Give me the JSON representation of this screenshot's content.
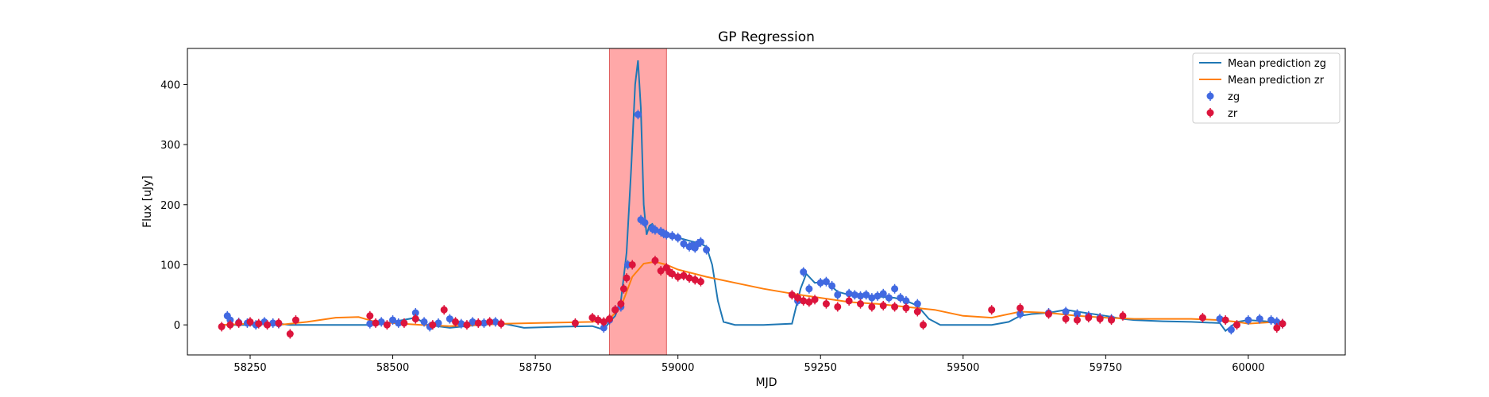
{
  "chart_data": {
    "type": "scatter",
    "title": "GP Regression",
    "xlabel": "MJD",
    "ylabel": "Flux [uJy]",
    "xlim": [
      58140,
      60170
    ],
    "ylim": [
      -50,
      460
    ],
    "x_ticks": [
      58250,
      58500,
      58750,
      59000,
      59250,
      59500,
      59750,
      60000
    ],
    "y_ticks": [
      0,
      100,
      200,
      300,
      400
    ],
    "legend_position": "top-right",
    "highlight_region": {
      "x_start": 58880,
      "x_end": 58980,
      "color": "#ff9e9e"
    },
    "legend": [
      {
        "label": "Mean prediction zg",
        "kind": "line",
        "color": "#1f77b4"
      },
      {
        "label": "Mean prediction zr",
        "kind": "line",
        "color": "#ff7f0e"
      },
      {
        "label": "zg",
        "kind": "errorbar",
        "color": "#4169e1"
      },
      {
        "label": "zr",
        "kind": "errorbar",
        "color": "#dc143c"
      }
    ],
    "series": [
      {
        "name": "Mean prediction zg",
        "kind": "line",
        "color": "#1f77b4",
        "x": [
          58200,
          58250,
          58300,
          58320,
          58400,
          58470,
          58500,
          58540,
          58560,
          58600,
          58650,
          58690,
          58730,
          58800,
          58850,
          58870,
          58880,
          58890,
          58900,
          58910,
          58918,
          58925,
          58930,
          58935,
          58940,
          58945,
          58950,
          58955,
          58960,
          58970,
          58980,
          59000,
          59020,
          59040,
          59050,
          59060,
          59070,
          59080,
          59100,
          59150,
          59200,
          59215,
          59225,
          59240,
          59260,
          59280,
          59300,
          59340,
          59380,
          59400,
          59420,
          59440,
          59460,
          59500,
          59550,
          59580,
          59600,
          59620,
          59650,
          59680,
          59700,
          59750,
          59780,
          59800,
          59850,
          59900,
          59950,
          59960,
          59980,
          60000,
          60030,
          60060
        ],
        "y": [
          0,
          0,
          2,
          0,
          0,
          0,
          5,
          12,
          0,
          -5,
          0,
          3,
          -5,
          -3,
          -2,
          -8,
          5,
          15,
          40,
          120,
          260,
          400,
          440,
          360,
          200,
          150,
          165,
          168,
          160,
          155,
          150,
          145,
          140,
          135,
          130,
          100,
          40,
          5,
          0,
          0,
          2,
          60,
          85,
          70,
          72,
          55,
          50,
          48,
          45,
          40,
          32,
          10,
          0,
          0,
          0,
          5,
          15,
          18,
          20,
          25,
          22,
          15,
          10,
          8,
          6,
          5,
          3,
          -10,
          5,
          8,
          6,
          2
        ]
      },
      {
        "name": "Mean prediction zr",
        "kind": "line",
        "color": "#ff7f0e",
        "x": [
          58200,
          58250,
          58300,
          58350,
          58400,
          58440,
          58470,
          58500,
          58550,
          58600,
          58650,
          58700,
          58750,
          58800,
          58850,
          58880,
          58900,
          58920,
          58940,
          58960,
          58980,
          59000,
          59050,
          59100,
          59150,
          59200,
          59250,
          59300,
          59350,
          59400,
          59450,
          59500,
          59550,
          59600,
          59650,
          59700,
          59750,
          59800,
          59850,
          59900,
          59950,
          59980,
          60000,
          60050,
          60060
        ],
        "y": [
          0,
          2,
          0,
          5,
          12,
          13,
          5,
          3,
          0,
          -2,
          0,
          2,
          3,
          4,
          5,
          10,
          30,
          80,
          102,
          105,
          100,
          92,
          80,
          70,
          60,
          52,
          45,
          38,
          35,
          30,
          25,
          15,
          12,
          22,
          20,
          15,
          12,
          10,
          10,
          10,
          8,
          5,
          2,
          5,
          0
        ]
      },
      {
        "name": "zg",
        "kind": "points",
        "color": "#4169e1",
        "x": [
          58210,
          58215,
          58230,
          58245,
          58260,
          58275,
          58290,
          58300,
          58460,
          58480,
          58500,
          58510,
          58540,
          58555,
          58565,
          58580,
          58600,
          58620,
          58640,
          58660,
          58680,
          58870,
          58880,
          58890,
          58900,
          58912,
          58930,
          58935,
          58942,
          58955,
          58960,
          58970,
          58975,
          58980,
          58990,
          59000,
          59010,
          59020,
          59025,
          59030,
          59035,
          59040,
          59050,
          59210,
          59220,
          59230,
          59250,
          59260,
          59270,
          59280,
          59300,
          59310,
          59320,
          59330,
          59340,
          59350,
          59360,
          59370,
          59380,
          59390,
          59400,
          59420,
          59600,
          59650,
          59680,
          59700,
          59720,
          59740,
          59760,
          59950,
          59970,
          60000,
          60020,
          60040,
          60050,
          60060
        ],
        "y": [
          15,
          8,
          4,
          3,
          0,
          5,
          3,
          2,
          2,
          5,
          8,
          3,
          20,
          5,
          -3,
          3,
          10,
          2,
          5,
          3,
          5,
          -5,
          8,
          25,
          30,
          100,
          350,
          175,
          170,
          160,
          158,
          155,
          152,
          150,
          148,
          145,
          135,
          130,
          132,
          128,
          135,
          138,
          125,
          40,
          88,
          60,
          70,
          72,
          65,
          50,
          52,
          50,
          48,
          50,
          45,
          48,
          52,
          45,
          60,
          45,
          40,
          35,
          18,
          20,
          22,
          18,
          15,
          12,
          10,
          10,
          -8,
          8,
          10,
          8,
          5,
          2
        ]
      },
      {
        "name": "zr",
        "kind": "points",
        "color": "#dc143c",
        "x": [
          58200,
          58215,
          58230,
          58250,
          58265,
          58280,
          58300,
          58320,
          58330,
          58460,
          58470,
          58490,
          58520,
          58540,
          58570,
          58590,
          58610,
          58630,
          58650,
          58670,
          58690,
          58820,
          58850,
          58860,
          58870,
          58880,
          58890,
          58900,
          58905,
          58910,
          58920,
          58960,
          58970,
          58980,
          58985,
          58990,
          59000,
          59010,
          59020,
          59030,
          59040,
          59200,
          59210,
          59220,
          59230,
          59240,
          59260,
          59280,
          59300,
          59320,
          59340,
          59360,
          59380,
          59400,
          59420,
          59430,
          59550,
          59600,
          59650,
          59680,
          59700,
          59720,
          59740,
          59760,
          59780,
          59920,
          59960,
          59980,
          60050,
          60060
        ],
        "y": [
          -3,
          0,
          3,
          5,
          2,
          0,
          3,
          -15,
          8,
          15,
          3,
          0,
          3,
          10,
          0,
          25,
          5,
          0,
          3,
          5,
          2,
          3,
          12,
          8,
          5,
          10,
          25,
          35,
          60,
          78,
          100,
          107,
          90,
          95,
          88,
          85,
          80,
          82,
          78,
          75,
          72,
          50,
          45,
          40,
          38,
          42,
          35,
          30,
          40,
          35,
          30,
          32,
          30,
          28,
          22,
          0,
          25,
          28,
          18,
          10,
          8,
          12,
          10,
          8,
          15,
          12,
          8,
          0,
          -5,
          2
        ]
      }
    ]
  }
}
